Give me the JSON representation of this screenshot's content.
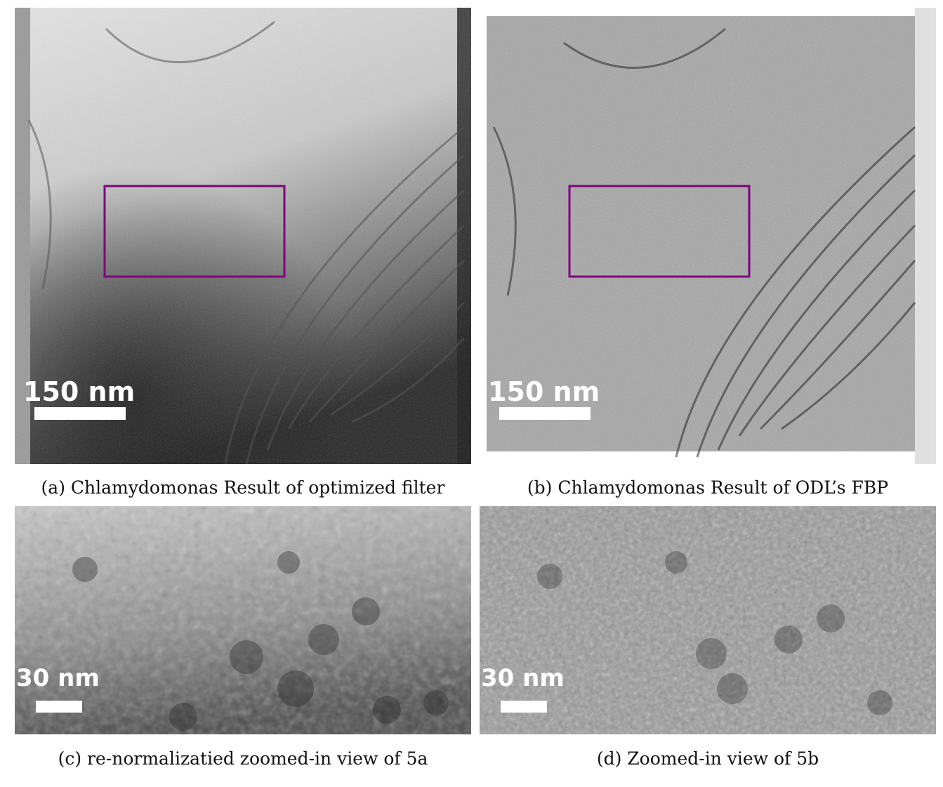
{
  "panels": [
    {
      "id": "a",
      "scale_label": "150 nm",
      "caption": "(a) Chlamydomonas Result of optimized filter"
    },
    {
      "id": "b",
      "scale_label": "150 nm",
      "caption": "(b) Chlamydomonas Result of ODL’s FBP"
    },
    {
      "id": "c",
      "scale_label": "30 nm",
      "caption": "(c) re-normalizatied zoomed-in view of 5a"
    },
    {
      "id": "d",
      "scale_label": "30 nm",
      "caption": "(d) Zoomed-in view of 5b"
    }
  ],
  "colors": {
    "roi_box": "#800080",
    "scale_bar": "#ffffff"
  }
}
